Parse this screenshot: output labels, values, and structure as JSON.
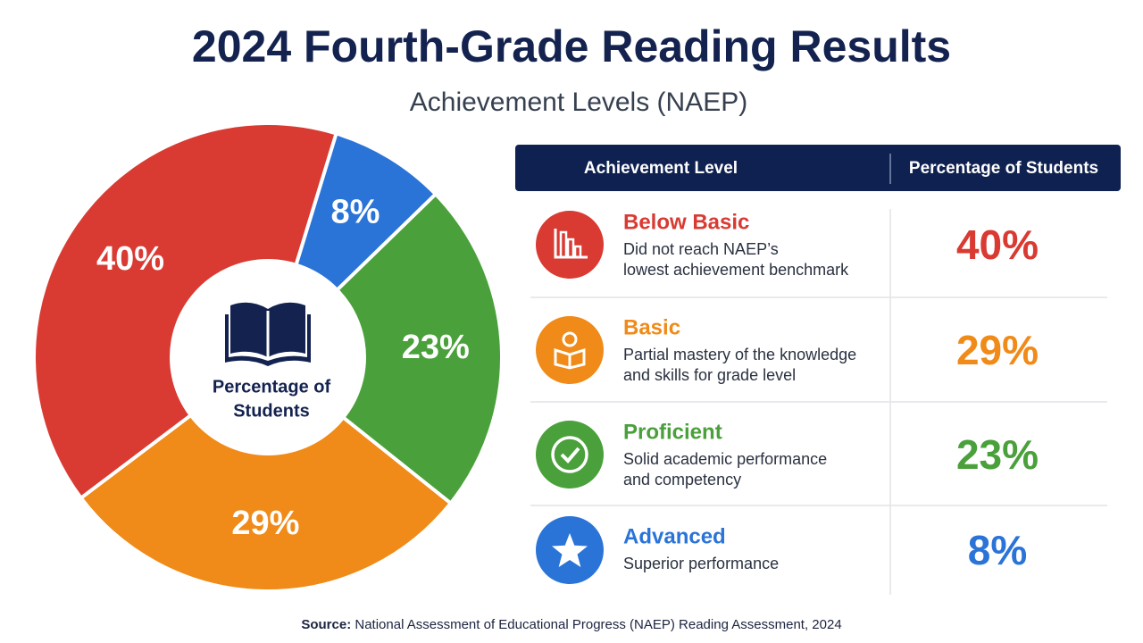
{
  "chart_data": {
    "type": "pie",
    "title": "2024 Fourth-Grade Reading Results",
    "subtitle": "Achievement Levels (NAEP)",
    "center_label": [
      "Percentage of",
      "Students"
    ],
    "categories": [
      "Below Basic",
      "Basic",
      "Proficient",
      "Advanced"
    ],
    "values": [
      40,
      29,
      23,
      8
    ],
    "value_labels": [
      "40%",
      "29%",
      "23%",
      "8%"
    ],
    "colors": [
      "#d93a32",
      "#f08a18",
      "#4aa03a",
      "#2a74d8"
    ],
    "descriptions": [
      [
        "Did not reach NAEP’s",
        "lowest achievement benchmark"
      ],
      [
        "Partial mastery of the knowledge",
        "and skills for grade level"
      ],
      [
        "Solid academic performance",
        "and competency"
      ],
      [
        "Superior performance"
      ]
    ]
  },
  "table_header": [
    "Achievement Level",
    "Percentage of Students"
  ],
  "source_label": "Source:",
  "source": "National Assessment of Educational Progress (NAEP) Reading Assessment, 2024"
}
